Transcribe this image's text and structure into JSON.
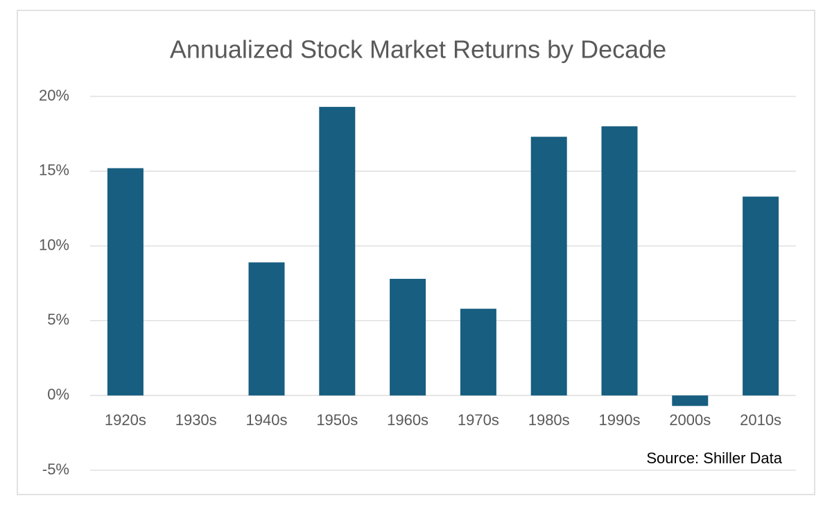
{
  "chart_data": {
    "type": "bar",
    "title": "Annualized Stock Market Returns by Decade",
    "annotation": "Source: Shiller Data",
    "categories": [
      "1920s",
      "1930s",
      "1940s",
      "1950s",
      "1960s",
      "1970s",
      "1980s",
      "1990s",
      "2000s",
      "2010s"
    ],
    "values": [
      15.2,
      0,
      8.9,
      19.3,
      7.8,
      5.8,
      17.3,
      18.0,
      -0.7,
      13.3
    ],
    "color": "#175e80",
    "ylim": [
      -5,
      20
    ],
    "yticks": [
      {
        "value": -5,
        "label": "-5%"
      },
      {
        "value": 0,
        "label": "0%"
      },
      {
        "value": 5,
        "label": "5%"
      },
      {
        "value": 10,
        "label": "10%"
      },
      {
        "value": 15,
        "label": "15%"
      },
      {
        "value": 20,
        "label": "20%"
      }
    ],
    "grid": true
  }
}
